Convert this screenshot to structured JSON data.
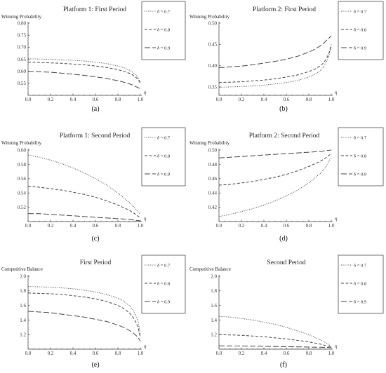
{
  "chart_data": [
    {
      "id": "a",
      "type": "line",
      "title": "Platform 1: First Period",
      "ylabel": "Winning Probability",
      "xlabel": "η",
      "caption": "(a)",
      "xlim": [
        0,
        1
      ],
      "ylim": [
        0.5,
        0.8
      ],
      "xticks": [
        "0.0",
        "0.2",
        "0.4",
        "0.6",
        "0.8",
        "1.0"
      ],
      "yticks": [
        "0.55",
        "0.60",
        "0.65",
        "0.70",
        "0.75",
        "0.80"
      ],
      "x": [
        0,
        0.1,
        0.2,
        0.3,
        0.4,
        0.5,
        0.6,
        0.7,
        0.8,
        0.85,
        0.9,
        0.93,
        0.96,
        0.98,
        1.0
      ],
      "series": [
        {
          "name": "δ = 0.7",
          "dash": "dot",
          "values": [
            0.652,
            0.651,
            0.65,
            0.648,
            0.646,
            0.643,
            0.638,
            0.632,
            0.622,
            0.615,
            0.605,
            0.597,
            0.585,
            0.573,
            0.555
          ]
        },
        {
          "name": "δ = 0.8",
          "dash": "short",
          "values": [
            0.638,
            0.637,
            0.635,
            0.633,
            0.63,
            0.627,
            0.622,
            0.616,
            0.607,
            0.6,
            0.592,
            0.585,
            0.575,
            0.565,
            0.55
          ]
        },
        {
          "name": "δ = 0.9",
          "dash": "long",
          "values": [
            0.6,
            0.598,
            0.596,
            0.592,
            0.588,
            0.583,
            0.577,
            0.57,
            0.561,
            0.555,
            0.548,
            0.543,
            0.536,
            0.532,
            0.528
          ]
        }
      ]
    },
    {
      "id": "b",
      "type": "line",
      "title": "Platform 2: First Period",
      "ylabel": "Winning Probability",
      "xlabel": "η",
      "caption": "(b)",
      "xlim": [
        0,
        1
      ],
      "ylim": [
        0.33,
        0.5
      ],
      "xticks": [
        "0.0",
        "0.2",
        "0.4",
        "0.6",
        "0.8",
        "1.0"
      ],
      "yticks": [
        "0.35",
        "0.40",
        "0.45",
        "0.50"
      ],
      "x": [
        0,
        0.1,
        0.2,
        0.3,
        0.4,
        0.5,
        0.6,
        0.7,
        0.8,
        0.85,
        0.9,
        0.93,
        0.96,
        0.98,
        1.0
      ],
      "series": [
        {
          "name": "δ = 0.7",
          "dash": "dot",
          "values": [
            0.349,
            0.35,
            0.351,
            0.352,
            0.354,
            0.357,
            0.36,
            0.365,
            0.373,
            0.379,
            0.388,
            0.396,
            0.41,
            0.423,
            0.445
          ]
        },
        {
          "name": "δ = 0.8",
          "dash": "short",
          "values": [
            0.36,
            0.361,
            0.362,
            0.364,
            0.366,
            0.369,
            0.373,
            0.378,
            0.386,
            0.391,
            0.399,
            0.406,
            0.418,
            0.43,
            0.45
          ]
        },
        {
          "name": "δ = 0.9",
          "dash": "long",
          "values": [
            0.395,
            0.397,
            0.399,
            0.402,
            0.406,
            0.41,
            0.415,
            0.422,
            0.432,
            0.438,
            0.446,
            0.452,
            0.46,
            0.465,
            0.47
          ]
        }
      ]
    },
    {
      "id": "c",
      "type": "line",
      "title": "Platform 1: Second Period",
      "ylabel": "Winning Probability",
      "xlabel": "η",
      "caption": "(c)",
      "xlim": [
        0,
        1
      ],
      "ylim": [
        0.5,
        0.6
      ],
      "xticks": [
        "0.0",
        "0.2",
        "0.4",
        "0.6",
        "0.8",
        "1.0"
      ],
      "yticks": [
        "0.52",
        "0.54",
        "0.56",
        "0.58",
        "0.60"
      ],
      "x": [
        0,
        0.1,
        0.2,
        0.3,
        0.4,
        0.5,
        0.6,
        0.7,
        0.8,
        0.9,
        0.95,
        1.0
      ],
      "series": [
        {
          "name": "δ = 0.7",
          "dash": "dot",
          "values": [
            0.593,
            0.59,
            0.586,
            0.581,
            0.575,
            0.568,
            0.56,
            0.551,
            0.54,
            0.527,
            0.519,
            0.51
          ]
        },
        {
          "name": "δ = 0.8",
          "dash": "short",
          "values": [
            0.549,
            0.548,
            0.546,
            0.544,
            0.541,
            0.538,
            0.534,
            0.529,
            0.523,
            0.516,
            0.511,
            0.505
          ]
        },
        {
          "name": "δ = 0.9",
          "dash": "long",
          "values": [
            0.511,
            0.511,
            0.51,
            0.509,
            0.508,
            0.507,
            0.506,
            0.505,
            0.504,
            0.503,
            0.502,
            0.501
          ]
        }
      ]
    },
    {
      "id": "d",
      "type": "line",
      "title": "Platform 2: Second Period",
      "ylabel": "Winning Probability",
      "xlabel": "η",
      "caption": "(d)",
      "xlim": [
        0,
        1
      ],
      "ylim": [
        0.4,
        0.5
      ],
      "xticks": [
        "0.0",
        "0.2",
        "0.4",
        "0.6",
        "0.8",
        "1.0"
      ],
      "yticks": [
        "0.42",
        "0.44",
        "0.46",
        "0.48",
        "0.50"
      ],
      "x": [
        0,
        0.1,
        0.2,
        0.3,
        0.4,
        0.5,
        0.6,
        0.7,
        0.8,
        0.9,
        0.95,
        1.0
      ],
      "series": [
        {
          "name": "δ = 0.7",
          "dash": "dot",
          "values": [
            0.407,
            0.41,
            0.414,
            0.418,
            0.423,
            0.429,
            0.436,
            0.444,
            0.454,
            0.467,
            0.476,
            0.49
          ]
        },
        {
          "name": "δ = 0.8",
          "dash": "short",
          "values": [
            0.451,
            0.452,
            0.454,
            0.456,
            0.459,
            0.462,
            0.466,
            0.471,
            0.477,
            0.484,
            0.489,
            0.495
          ]
        },
        {
          "name": "δ = 0.9",
          "dash": "long",
          "values": [
            0.489,
            0.49,
            0.491,
            0.492,
            0.493,
            0.494,
            0.495,
            0.496,
            0.497,
            0.498,
            0.499,
            0.5
          ]
        }
      ]
    },
    {
      "id": "e",
      "type": "line",
      "title": "First Period",
      "ylabel": "Competitive Balance",
      "xlabel": "η",
      "caption": "(e)",
      "xlim": [
        0,
        1
      ],
      "ylim": [
        1.0,
        2.0
      ],
      "xticks": [
        "0.0",
        "0.2",
        "0.4",
        "0.6",
        "0.8",
        "1.0"
      ],
      "yticks": [
        "1.2",
        "1.4",
        "1.6",
        "1.8",
        "2.0"
      ],
      "x": [
        0,
        0.1,
        0.2,
        0.3,
        0.4,
        0.5,
        0.6,
        0.7,
        0.8,
        0.85,
        0.9,
        0.93,
        0.96,
        0.98,
        1.0
      ],
      "series": [
        {
          "name": "δ = 0.7",
          "dash": "dot",
          "values": [
            1.86,
            1.855,
            1.85,
            1.84,
            1.83,
            1.81,
            1.785,
            1.75,
            1.7,
            1.66,
            1.6,
            1.55,
            1.46,
            1.38,
            1.2
          ]
        },
        {
          "name": "δ = 0.8",
          "dash": "short",
          "values": [
            1.77,
            1.765,
            1.76,
            1.75,
            1.735,
            1.715,
            1.69,
            1.655,
            1.6,
            1.56,
            1.5,
            1.45,
            1.37,
            1.3,
            1.16
          ]
        },
        {
          "name": "δ = 0.9",
          "dash": "long",
          "values": [
            1.52,
            1.51,
            1.5,
            1.48,
            1.46,
            1.44,
            1.41,
            1.38,
            1.33,
            1.3,
            1.26,
            1.23,
            1.19,
            1.16,
            1.11
          ]
        }
      ]
    },
    {
      "id": "f",
      "type": "line",
      "title": "Second Period",
      "ylabel": "Competitive Balance",
      "xlabel": "η",
      "caption": "(f)",
      "xlim": [
        0,
        1
      ],
      "ylim": [
        1.0,
        2.0
      ],
      "xticks": [
        "0.0",
        "0.2",
        "0.4",
        "0.6",
        "0.8",
        "1.0"
      ],
      "yticks": [
        "1.2",
        "1.4",
        "1.6",
        "1.8",
        "2.0"
      ],
      "x": [
        0,
        0.1,
        0.2,
        0.3,
        0.4,
        0.5,
        0.6,
        0.7,
        0.8,
        0.9,
        0.95,
        1.0
      ],
      "series": [
        {
          "name": "δ = 0.7",
          "dash": "dot",
          "values": [
            1.45,
            1.44,
            1.42,
            1.4,
            1.37,
            1.34,
            1.3,
            1.25,
            1.2,
            1.13,
            1.09,
            1.04
          ]
        },
        {
          "name": "δ = 0.8",
          "dash": "short",
          "values": [
            1.2,
            1.195,
            1.19,
            1.18,
            1.17,
            1.155,
            1.14,
            1.12,
            1.1,
            1.07,
            1.05,
            1.03
          ]
        },
        {
          "name": "δ = 0.9",
          "dash": "long",
          "values": [
            1.045,
            1.044,
            1.043,
            1.041,
            1.039,
            1.037,
            1.035,
            1.032,
            1.029,
            1.026,
            1.024,
            1.022
          ]
        }
      ]
    }
  ]
}
